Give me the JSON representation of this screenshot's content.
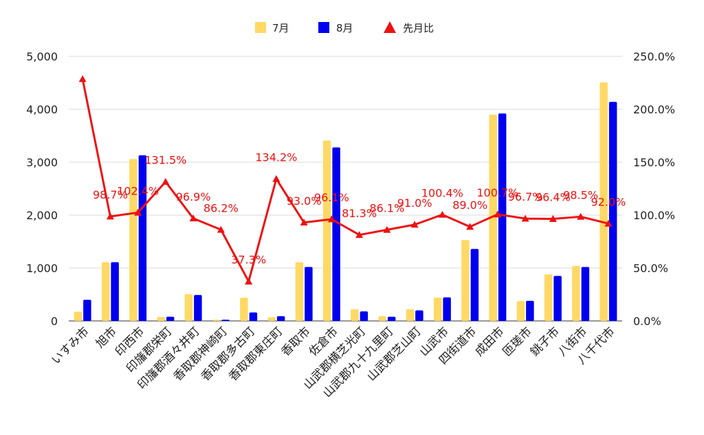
{
  "chart_data": {
    "type": "bar",
    "title": "",
    "legend_position": "top",
    "grid": true,
    "categories": [
      "いすみ市",
      "旭市",
      "印西市",
      "印旛郡栄町",
      "印旛郡酒々井町",
      "香取郡神崎町",
      "香取郡多古町",
      "香取郡東庄町",
      "香取市",
      "佐倉市",
      "山武郡横芝光町",
      "山武郡九十九里町",
      "山武郡芝山町",
      "山武市",
      "四街道市",
      "成田市",
      "匝瑳市",
      "銚子市",
      "八街市",
      "八千代市"
    ],
    "y_left": {
      "ylim": [
        0,
        5000
      ],
      "ticks": [
        "0",
        "1,000",
        "2,000",
        "3,000",
        "4,000",
        "5,000"
      ]
    },
    "y_right": {
      "ylim": [
        0,
        250
      ],
      "ticks": [
        "0.0%",
        "50.0%",
        "100.0%",
        "150.0%",
        "200.0%",
        "250.0%"
      ]
    },
    "series": [
      {
        "name": "7月",
        "type": "bar",
        "axis": "left",
        "color": "#ffd966",
        "values": [
          175,
          1110,
          3060,
          75,
          505,
          25,
          440,
          70,
          1110,
          3410,
          220,
          90,
          220,
          440,
          1530,
          3900,
          375,
          880,
          1040,
          4510
        ]
      },
      {
        "name": "8月",
        "type": "bar",
        "axis": "left",
        "color": "#0000ee",
        "values": [
          400,
          1110,
          3130,
          80,
          490,
          22,
          160,
          90,
          1020,
          3280,
          180,
          80,
          200,
          445,
          1360,
          3920,
          380,
          850,
          1020,
          4140
        ]
      },
      {
        "name": "先月比",
        "type": "line",
        "axis": "right",
        "color": "#ee1111",
        "marker": "triangle",
        "values": [
          228.6,
          98.7,
          102.4,
          131.5,
          96.9,
          86.2,
          37.3,
          134.2,
          93.0,
          96.1,
          81.3,
          86.1,
          91.0,
          100.4,
          89.0,
          100.7,
          96.7,
          96.4,
          98.5,
          92.0
        ],
        "labels": [
          "",
          "98.7%",
          "102.4%",
          "131.5%",
          "96.9%",
          "86.2%",
          "37.3%",
          "134.2%",
          "93.0%",
          "96.1%",
          "81.3%",
          "86.1%",
          "91.0%",
          "100.4%",
          "89.0%",
          "100.7%",
          "96.7%",
          "96.4%",
          "98.5%",
          "92.0%"
        ]
      }
    ]
  }
}
